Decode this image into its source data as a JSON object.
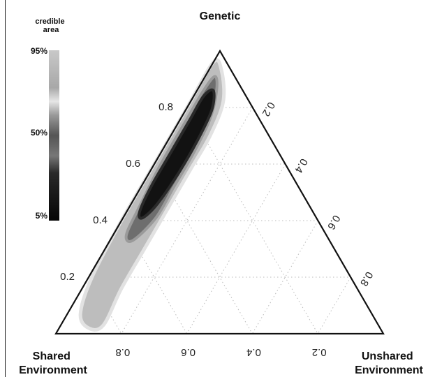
{
  "chart_data": {
    "type": "ternary-density",
    "vertices": {
      "top": "Genetic",
      "bottom_left": [
        "Shared",
        "Environment"
      ],
      "bottom_right": [
        "Unshared",
        "Environment"
      ]
    },
    "ticks": {
      "genetic": [
        0.2,
        0.4,
        0.6,
        0.8
      ],
      "unshared": [
        0.2,
        0.4,
        0.6,
        0.8
      ],
      "shared": [
        0.8,
        0.6,
        0.4,
        0.2
      ]
    },
    "grid": "dotted",
    "legend": {
      "title": [
        "credible",
        "area"
      ],
      "labels": [
        "95%",
        "50%",
        "5%"
      ],
      "placement": "top-left"
    },
    "credible_regions": [
      {
        "level": "95%",
        "color": "#bdbdbd",
        "points": [
          {
            "g": 0.96,
            "c": 0.04,
            "e": 0.0
          },
          {
            "g": 0.93,
            "c": 0.03,
            "e": 0.04
          },
          {
            "g": 0.82,
            "c": 0.08,
            "e": 0.1
          },
          {
            "g": 0.7,
            "c": 0.18,
            "e": 0.12
          },
          {
            "g": 0.58,
            "c": 0.3,
            "e": 0.12
          },
          {
            "g": 0.44,
            "c": 0.44,
            "e": 0.12
          },
          {
            "g": 0.3,
            "c": 0.58,
            "e": 0.12
          },
          {
            "g": 0.16,
            "c": 0.72,
            "e": 0.12
          },
          {
            "g": 0.03,
            "c": 0.84,
            "e": 0.13
          },
          {
            "g": 0.02,
            "c": 0.89,
            "e": 0.09
          },
          {
            "g": 0.07,
            "c": 0.89,
            "e": 0.04
          },
          {
            "g": 0.2,
            "c": 0.79,
            "e": 0.01
          },
          {
            "g": 0.4,
            "c": 0.6,
            "e": 0.0
          },
          {
            "g": 0.6,
            "c": 0.4,
            "e": 0.0
          },
          {
            "g": 0.8,
            "c": 0.2,
            "e": 0.0
          }
        ]
      },
      {
        "level": "50%",
        "color": "#6e6e6e",
        "points": [
          {
            "g": 0.91,
            "c": 0.06,
            "e": 0.03
          },
          {
            "g": 0.86,
            "c": 0.08,
            "e": 0.06
          },
          {
            "g": 0.76,
            "c": 0.15,
            "e": 0.09
          },
          {
            "g": 0.64,
            "c": 0.26,
            "e": 0.1
          },
          {
            "g": 0.52,
            "c": 0.38,
            "e": 0.1
          },
          {
            "g": 0.41,
            "c": 0.49,
            "e": 0.1
          },
          {
            "g": 0.33,
            "c": 0.6,
            "e": 0.07
          },
          {
            "g": 0.35,
            "c": 0.61,
            "e": 0.04
          },
          {
            "g": 0.45,
            "c": 0.52,
            "e": 0.03
          },
          {
            "g": 0.6,
            "c": 0.38,
            "e": 0.02
          },
          {
            "g": 0.75,
            "c": 0.23,
            "e": 0.02
          },
          {
            "g": 0.86,
            "c": 0.12,
            "e": 0.02
          }
        ]
      },
      {
        "level": "5%",
        "color": "#121212",
        "points": [
          {
            "g": 0.86,
            "c": 0.09,
            "e": 0.05
          },
          {
            "g": 0.79,
            "c": 0.13,
            "e": 0.08
          },
          {
            "g": 0.68,
            "c": 0.23,
            "e": 0.09
          },
          {
            "g": 0.57,
            "c": 0.34,
            "e": 0.09
          },
          {
            "g": 0.46,
            "c": 0.46,
            "e": 0.08
          },
          {
            "g": 0.41,
            "c": 0.53,
            "e": 0.06
          },
          {
            "g": 0.43,
            "c": 0.53,
            "e": 0.04
          },
          {
            "g": 0.52,
            "c": 0.45,
            "e": 0.03
          },
          {
            "g": 0.64,
            "c": 0.33,
            "e": 0.03
          },
          {
            "g": 0.76,
            "c": 0.21,
            "e": 0.03
          },
          {
            "g": 0.84,
            "c": 0.13,
            "e": 0.03
          }
        ]
      }
    ],
    "colors": {
      "light": "#d6d6d6",
      "mid": "#6e6e6e",
      "dark": "#121212",
      "edge": "#111111"
    }
  }
}
